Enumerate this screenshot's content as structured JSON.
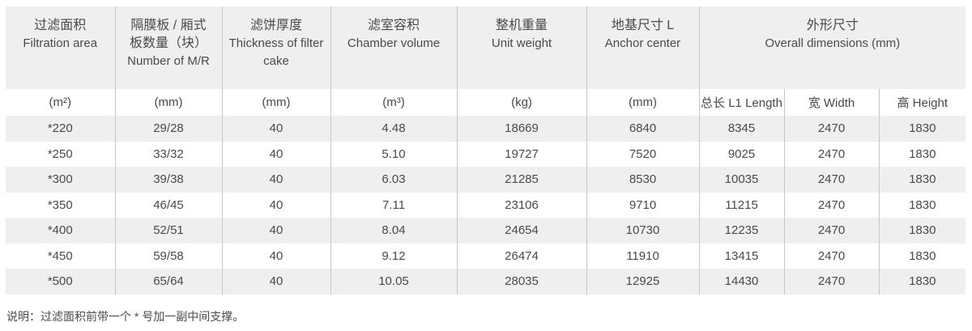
{
  "colors": {
    "header_bg": "#efefef",
    "stripe_bg": "#efefef",
    "grid_line": "#c6c6c6",
    "text": "#4a4a4a"
  },
  "table": {
    "header": {
      "cols": [
        {
          "zh": "过滤面积",
          "en": "Filtration area",
          "unit": "(m²)"
        },
        {
          "zh": "隔膜板 / 厢式",
          "zh2": "板数量（块）",
          "en": "Number of M/R",
          "unit": "(mm)"
        },
        {
          "zh": "滤饼厚度",
          "en": "Thickness of filter cake",
          "unit": "(mm)"
        },
        {
          "zh": "滤室容积",
          "en": "Chamber volume",
          "unit": "(m³)"
        },
        {
          "zh": "整机重量",
          "en": "Unit weight",
          "unit": "(kg)"
        },
        {
          "zh": "地基尺寸 L",
          "en": "Anchor center",
          "unit": "(mm)"
        }
      ],
      "group": {
        "zh": "外形尺寸",
        "en": "Overall dimensions (mm)",
        "subcols": [
          "总长 L1 Length",
          "宽 Width",
          "高 Height"
        ]
      }
    },
    "rows": [
      [
        "*220",
        "29/28",
        "40",
        "4.48",
        "18669",
        "6840",
        "8345",
        "2470",
        "1830"
      ],
      [
        "*250",
        "33/32",
        "40",
        "5.10",
        "19727",
        "7520",
        "9025",
        "2470",
        "1830"
      ],
      [
        "*300",
        "39/38",
        "40",
        "6.03",
        "21285",
        "8530",
        "10035",
        "2470",
        "1830"
      ],
      [
        "*350",
        "46/45",
        "40",
        "7.11",
        "23106",
        "9710",
        "11215",
        "2470",
        "1830"
      ],
      [
        "*400",
        "52/51",
        "40",
        "8.04",
        "24654",
        "10730",
        "12235",
        "2470",
        "1830"
      ],
      [
        "*450",
        "59/58",
        "40",
        "9.12",
        "26474",
        "11910",
        "13415",
        "2470",
        "1830"
      ],
      [
        "*500",
        "65/64",
        "40",
        "10.05",
        "28035",
        "12925",
        "14430",
        "2470",
        "1830"
      ]
    ],
    "note": "说明：过滤面积前带一个 * 号加一副中间支撑。"
  }
}
